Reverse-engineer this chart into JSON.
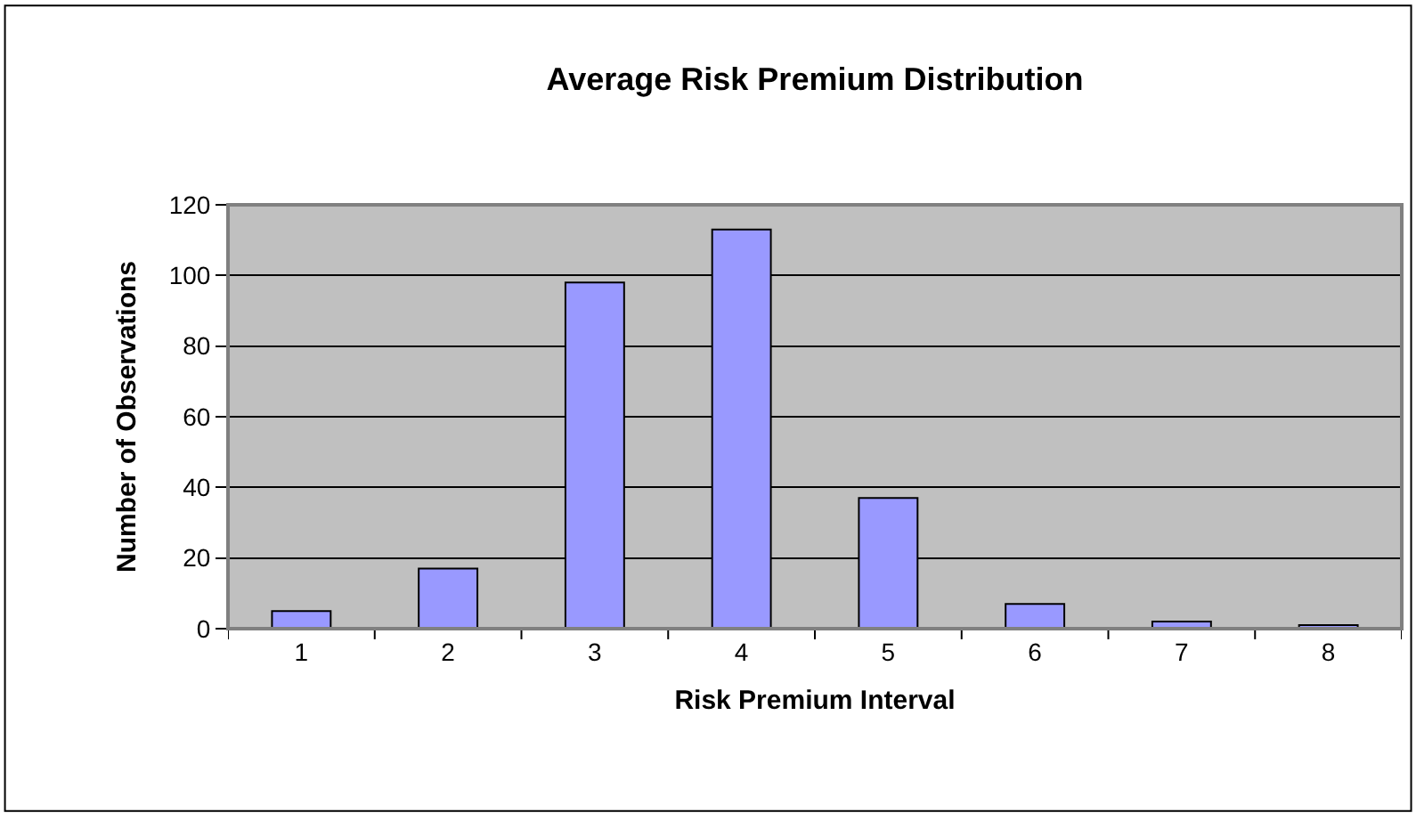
{
  "chart_data": {
    "type": "bar",
    "title": "Average Risk Premium Distribution",
    "xlabel": "Risk Premium Interval",
    "ylabel": "Number of Observations",
    "categories": [
      "1",
      "2",
      "3",
      "4",
      "5",
      "6",
      "7",
      "8"
    ],
    "values": [
      5,
      17,
      98,
      113,
      37,
      7,
      2,
      1
    ],
    "color": "#9999ff",
    "ylim": [
      0,
      120
    ],
    "yticks": [
      0,
      20,
      40,
      60,
      80,
      100,
      120
    ],
    "grid": "y",
    "legend": false
  }
}
